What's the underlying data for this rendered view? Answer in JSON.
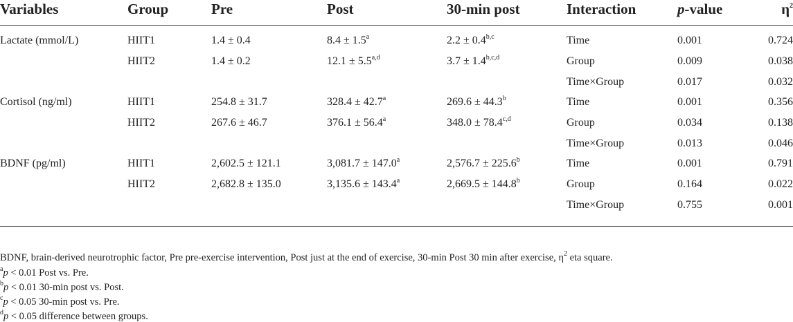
{
  "header": {
    "variables": "Variables",
    "group": "Group",
    "pre": "Pre",
    "post": "Post",
    "post30": "30-min post",
    "interaction": "Interaction",
    "p_prefix": "p",
    "p_suffix": "-value",
    "eta": "η",
    "eta_sup": "2"
  },
  "rows": [
    {
      "variable": "Lactate (mmol/L)",
      "group": "HIIT1",
      "pre": "1.4 ± 0.4",
      "post": "8.4 ± 1.5",
      "post_sup": "a",
      "post30": "2.2 ± 0.4",
      "post30_sup": "b,c",
      "interaction": "Time",
      "p": "0.001",
      "eta": "0.724"
    },
    {
      "variable": "",
      "group": "HIIT2",
      "pre": "1.4 ± 0.2",
      "post": "12.1 ± 5.5",
      "post_sup": "a,d",
      "post30": "3.7 ± 1.4",
      "post30_sup": "b,c,d",
      "interaction": "Group",
      "p": "0.009",
      "eta": "0.038"
    },
    {
      "variable": "",
      "group": "",
      "pre": "",
      "post": "",
      "post_sup": "",
      "post30": "",
      "post30_sup": "",
      "interaction": "Time×Group",
      "p": "0.017",
      "eta": "0.032"
    },
    {
      "variable": "Cortisol (ng/ml)",
      "group": "HIIT1",
      "pre": "254.8 ± 31.7",
      "post": "328.4 ± 42.7",
      "post_sup": "a",
      "post30": "269.6 ± 44.3",
      "post30_sup": "b",
      "interaction": "Time",
      "p": "0.001",
      "eta": "0.356"
    },
    {
      "variable": "",
      "group": "HIIT2",
      "pre": "267.6 ± 46.7",
      "post": "376.1 ± 56.4",
      "post_sup": "a",
      "post30": "348.0 ± 78.4",
      "post30_sup": "c,d",
      "interaction": "Group",
      "p": "0.034",
      "eta": "0.138"
    },
    {
      "variable": "",
      "group": "",
      "pre": "",
      "post": "",
      "post_sup": "",
      "post30": "",
      "post30_sup": "",
      "interaction": "Time×Group",
      "p": "0.013",
      "eta": "0.046"
    },
    {
      "variable": "BDNF (pg/ml)",
      "group": "HIIT1",
      "pre": "2,602.5 ± 121.1",
      "post": "3,081.7 ± 147.0",
      "post_sup": "a",
      "post30": "2,576.7 ± 225.6",
      "post30_sup": "b",
      "interaction": "Time",
      "p": "0.001",
      "eta": "0.791"
    },
    {
      "variable": "",
      "group": "HIIT2",
      "pre": "2,682.8 ± 135.0",
      "post": "3,135.6 ± 143.4",
      "post_sup": "a",
      "post30": "2,669.5 ± 144.8",
      "post30_sup": "b",
      "interaction": "Group",
      "p": "0.164",
      "eta": "0.022"
    },
    {
      "variable": "",
      "group": "",
      "pre": "",
      "post": "",
      "post_sup": "",
      "post30": "",
      "post30_sup": "",
      "interaction": "Time×Group",
      "p": "0.755",
      "eta": "0.001"
    }
  ],
  "footnotes": {
    "abbrev_main": "BDNF, brain-derived neurotrophic factor, Pre pre-exercise intervention, Post just at the end of exercise, 30-min Post 30 min after exercise, η",
    "abbrev_sup": "2",
    "abbrev_tail": " eta square.",
    "notes": [
      {
        "mark": "a",
        "p": "p",
        "text": " < 0.01 Post vs. Pre."
      },
      {
        "mark": "b",
        "p": "p",
        "text": " < 0.01 30-min post vs. Post."
      },
      {
        "mark": "c",
        "p": "p",
        "text": " < 0.05 30-min post vs. Pre."
      },
      {
        "mark": "d",
        "p": "p",
        "text": " < 0.05 difference between groups."
      }
    ]
  }
}
